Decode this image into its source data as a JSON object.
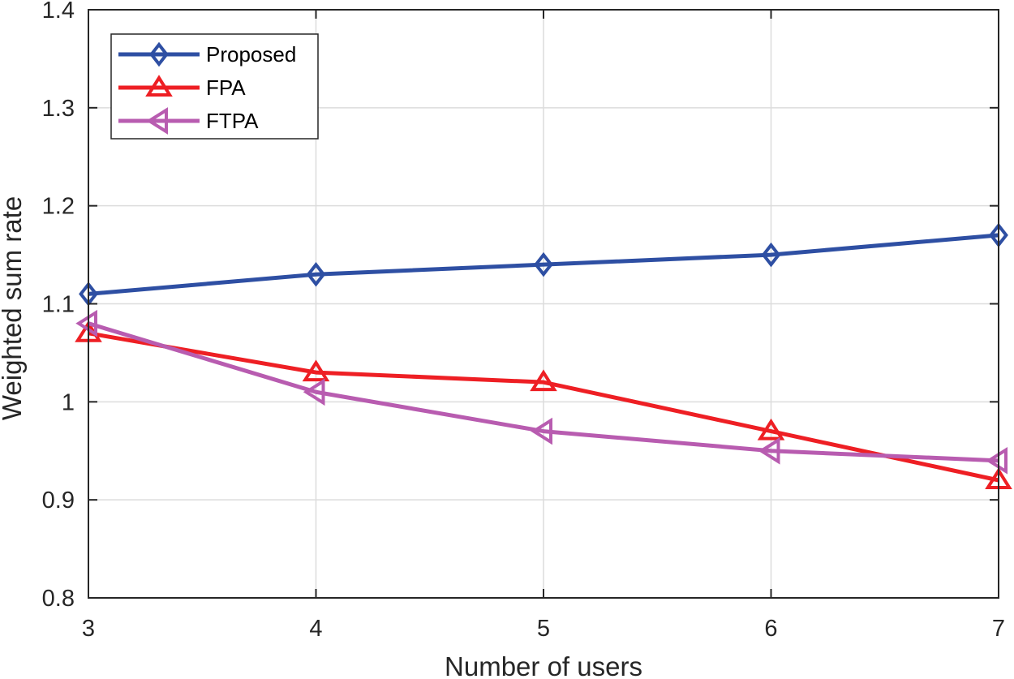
{
  "chart_data": {
    "type": "line",
    "title": "",
    "xlabel": "Number of users",
    "ylabel": "Weighted sum rate",
    "x": [
      3,
      4,
      5,
      6,
      7
    ],
    "xlim": [
      3,
      7
    ],
    "ylim": [
      0.8,
      1.4
    ],
    "xticks": [
      3,
      4,
      5,
      6,
      7
    ],
    "yticks": [
      0.8,
      0.9,
      1.0,
      1.1,
      1.2,
      1.3,
      1.4
    ],
    "xtick_labels": [
      "3",
      "4",
      "5",
      "6",
      "7"
    ],
    "ytick_labels": [
      "0.8",
      "0.9",
      "1",
      "1.1",
      "1.2",
      "1.3",
      "1.4"
    ],
    "grid": true,
    "legend_position": "top-left",
    "series": [
      {
        "name": "Proposed",
        "color": "#2e4fa3",
        "marker": "diamond",
        "values": [
          1.11,
          1.13,
          1.14,
          1.15,
          1.17
        ]
      },
      {
        "name": "FPA",
        "color": "#ee1f24",
        "marker": "triangle-up",
        "values": [
          1.07,
          1.03,
          1.02,
          0.97,
          0.92
        ]
      },
      {
        "name": "FTPA",
        "color": "#b85cb0",
        "marker": "triangle-left",
        "values": [
          1.08,
          1.01,
          0.97,
          0.95,
          0.94
        ]
      }
    ]
  }
}
